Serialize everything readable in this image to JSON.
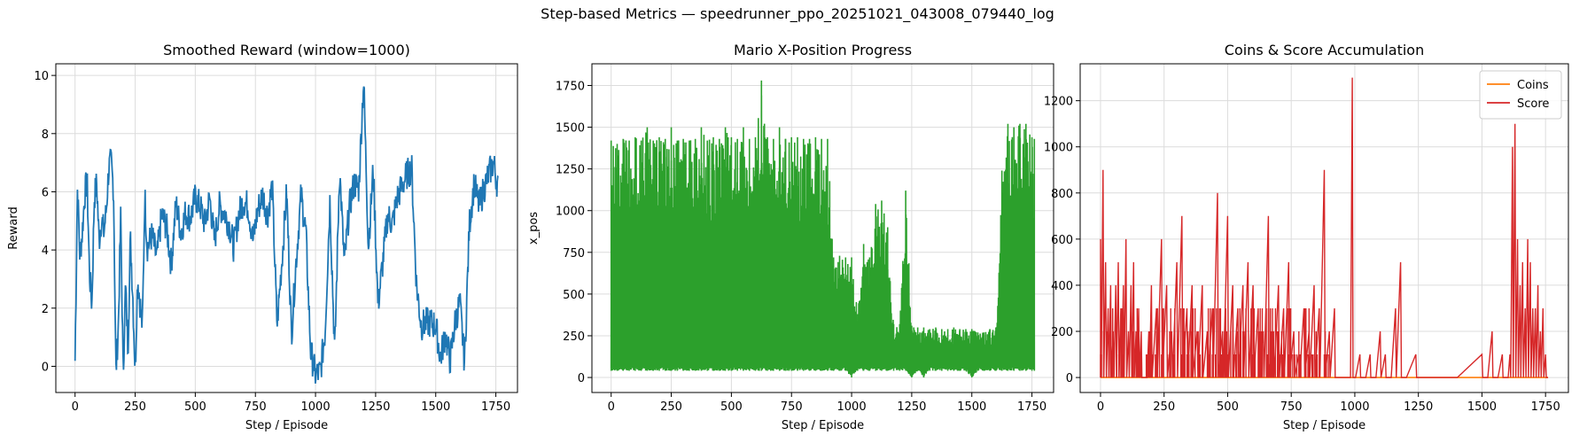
{
  "suptitle": "Step-based Metrics — speedrunner_ppo_20251021_043008_079440_log",
  "chart_data": [
    {
      "type": "line",
      "title": "Smoothed Reward (window=1000)",
      "xlabel": "Step / Episode",
      "ylabel": "Reward",
      "xlim": [
        -80,
        1840
      ],
      "ylim": [
        -0.9,
        10.4
      ],
      "xticks": [
        0,
        250,
        500,
        750,
        1000,
        1250,
        1500,
        1750
      ],
      "yticks": [
        0,
        2,
        4,
        6,
        8,
        10
      ],
      "grid": true,
      "style": "dense_noisy",
      "series": [
        {
          "color": "#1f77b4",
          "x": [
            0,
            10,
            20,
            30,
            40,
            50,
            60,
            70,
            80,
            90,
            100,
            110,
            120,
            130,
            140,
            150,
            160,
            170,
            180,
            190,
            200,
            210,
            220,
            230,
            240,
            250,
            260,
            270,
            280,
            290,
            300,
            320,
            340,
            360,
            380,
            400,
            420,
            440,
            460,
            480,
            500,
            520,
            540,
            560,
            580,
            600,
            620,
            640,
            660,
            680,
            700,
            720,
            740,
            760,
            780,
            800,
            820,
            840,
            860,
            880,
            900,
            920,
            940,
            960,
            980,
            1000,
            1020,
            1040,
            1060,
            1080,
            1100,
            1120,
            1140,
            1160,
            1180,
            1200,
            1220,
            1240,
            1260,
            1280,
            1300,
            1320,
            1340,
            1360,
            1380,
            1400,
            1420,
            1440,
            1460,
            1480,
            1500,
            1520,
            1540,
            1560,
            1580,
            1600,
            1620,
            1640,
            1660,
            1680,
            1700,
            1720,
            1740,
            1760
          ],
          "values": [
            0.2,
            6.2,
            3.8,
            4.6,
            5.9,
            6.4,
            3.2,
            2.1,
            5.8,
            6.3,
            4.3,
            5.1,
            4.6,
            5.4,
            6.8,
            7.0,
            6.1,
            -0.2,
            1.4,
            5.2,
            -0.3,
            2.8,
            0.6,
            4.4,
            2.5,
            -0.2,
            3.1,
            2.2,
            1.3,
            5.9,
            4.1,
            4.5,
            3.7,
            5.2,
            4.8,
            3.5,
            5.6,
            4.6,
            5.3,
            5.1,
            5.8,
            5.5,
            4.9,
            5.8,
            4.3,
            5.5,
            5.3,
            4.9,
            4.1,
            5.2,
            5.7,
            5.5,
            4.3,
            5.4,
            5.9,
            5.2,
            6.2,
            1.4,
            3.6,
            6.0,
            1.1,
            3.7,
            5.9,
            4.6,
            0.5,
            -0.3,
            -0.2,
            1.2,
            5.7,
            0.4,
            6.8,
            3.5,
            5.4,
            6.3,
            6.1,
            9.9,
            4.1,
            6.8,
            2.1,
            3.6,
            5.2,
            4.9,
            5.8,
            6.2,
            6.6,
            6.8,
            2.8,
            1.4,
            1.5,
            1.5,
            1.4,
            0.3,
            1.1,
            0.2,
            1.5,
            2.2,
            0.1,
            4.9,
            6.3,
            5.5,
            6.1,
            6.6,
            7.0,
            6.1
          ]
        }
      ]
    },
    {
      "type": "line",
      "title": "Mario X-Position Progress",
      "xlabel": "Step / Episode",
      "ylabel": "x_pos",
      "xlim": [
        -80,
        1840
      ],
      "ylim": [
        -90,
        1880
      ],
      "xticks": [
        0,
        250,
        500,
        750,
        1000,
        1250,
        1500,
        1750
      ],
      "yticks": [
        0,
        250,
        500,
        750,
        1000,
        1250,
        1500,
        1750
      ],
      "grid": true,
      "style": "dense_band",
      "series": [
        {
          "color": "#2ca02c",
          "x": [
            0,
            25,
            50,
            75,
            100,
            125,
            150,
            175,
            200,
            225,
            250,
            275,
            300,
            325,
            350,
            375,
            400,
            425,
            450,
            475,
            500,
            525,
            550,
            575,
            600,
            625,
            650,
            675,
            700,
            725,
            750,
            775,
            800,
            825,
            850,
            875,
            900,
            925,
            950,
            975,
            1000,
            1025,
            1050,
            1075,
            1100,
            1125,
            1150,
            1175,
            1200,
            1225,
            1250,
            1275,
            1300,
            1325,
            1350,
            1375,
            1400,
            1425,
            1450,
            1475,
            1500,
            1525,
            1550,
            1575,
            1600,
            1625,
            1650,
            1675,
            1700,
            1725,
            1750,
            1760
          ],
          "values": [
            1420,
            1400,
            1430,
            1420,
            1440,
            1420,
            1500,
            1420,
            1440,
            1430,
            1500,
            1420,
            1430,
            1420,
            1430,
            1500,
            1420,
            1440,
            1430,
            1500,
            1440,
            1430,
            1500,
            1430,
            1440,
            1780,
            1440,
            1430,
            1500,
            1430,
            1440,
            1440,
            1430,
            1430,
            1440,
            1430,
            1430,
            720,
            730,
            720,
            720,
            380,
            800,
            720,
            1040,
            1060,
            900,
            320,
            320,
            1120,
            310,
            300,
            300,
            290,
            300,
            290,
            290,
            300,
            290,
            290,
            290,
            270,
            270,
            290,
            300,
            1240,
            1520,
            1500,
            1520,
            1520,
            1440,
            1430
          ],
          "base": [
            40,
            40,
            40,
            40,
            40,
            40,
            40,
            40,
            40,
            40,
            40,
            40,
            40,
            40,
            40,
            40,
            40,
            40,
            40,
            40,
            40,
            40,
            40,
            40,
            40,
            40,
            40,
            40,
            40,
            40,
            40,
            40,
            40,
            40,
            40,
            40,
            40,
            40,
            40,
            40,
            0,
            40,
            40,
            40,
            40,
            40,
            40,
            40,
            40,
            40,
            0,
            40,
            0,
            40,
            40,
            40,
            40,
            40,
            40,
            40,
            0,
            40,
            40,
            40,
            40,
            40,
            40,
            40,
            40,
            40,
            40,
            40
          ]
        }
      ]
    },
    {
      "type": "line",
      "title": "Coins & Score Accumulation",
      "xlabel": "Step / Episode",
      "ylabel": "",
      "xlim": [
        -80,
        1840
      ],
      "ylim": [
        -65,
        1360
      ],
      "xticks": [
        0,
        250,
        500,
        750,
        1000,
        1250,
        1500,
        1750
      ],
      "yticks": [
        0,
        200,
        400,
        600,
        800,
        1000,
        1200
      ],
      "grid": true,
      "legend": "top-right",
      "style": "spikes",
      "series": [
        {
          "name": "Coins",
          "color": "#ff7f0e",
          "x": [
            0,
            1760
          ],
          "values": [
            0,
            0
          ]
        },
        {
          "name": "Score",
          "color": "#d62728",
          "x": [
            0,
            10,
            20,
            30,
            40,
            50,
            60,
            70,
            80,
            90,
            100,
            110,
            120,
            130,
            140,
            150,
            160,
            170,
            180,
            190,
            200,
            220,
            240,
            260,
            280,
            300,
            320,
            340,
            360,
            380,
            400,
            420,
            440,
            460,
            480,
            500,
            520,
            540,
            560,
            580,
            600,
            620,
            640,
            660,
            680,
            700,
            720,
            740,
            760,
            780,
            800,
            820,
            840,
            860,
            880,
            900,
            920,
            940,
            960,
            980,
            990,
            1000,
            1020,
            1040,
            1060,
            1080,
            1100,
            1120,
            1140,
            1160,
            1180,
            1200,
            1240,
            1300,
            1400,
            1500,
            1520,
            1540,
            1560,
            1580,
            1600,
            1610,
            1620,
            1630,
            1640,
            1650,
            1660,
            1670,
            1680,
            1690,
            1700,
            1710,
            1720,
            1730,
            1740,
            1750
          ],
          "values": [
            600,
            900,
            500,
            300,
            400,
            200,
            400,
            500,
            300,
            400,
            600,
            200,
            400,
            500,
            200,
            300,
            200,
            0,
            0,
            200,
            400,
            300,
            600,
            400,
            200,
            500,
            700,
            300,
            400,
            200,
            400,
            200,
            300,
            800,
            200,
            700,
            400,
            300,
            400,
            500,
            400,
            300,
            200,
            700,
            200,
            400,
            300,
            500,
            200,
            100,
            300,
            200,
            400,
            300,
            900,
            200,
            300,
            0,
            0,
            0,
            1300,
            0,
            100,
            0,
            100,
            0,
            200,
            100,
            0,
            300,
            500,
            0,
            100,
            0,
            0,
            100,
            0,
            200,
            0,
            100,
            0,
            100,
            1000,
            1100,
            600,
            400,
            500,
            300,
            600,
            500,
            300,
            300,
            400,
            200,
            300,
            100
          ]
        }
      ]
    }
  ]
}
